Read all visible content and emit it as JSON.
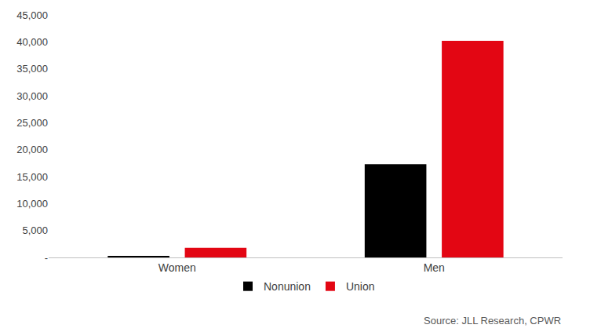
{
  "chart_data": {
    "type": "bar",
    "categories": [
      "Women",
      "Men"
    ],
    "series": [
      {
        "name": "Nonunion",
        "color": "#000000",
        "values": [
          300,
          17300
        ]
      },
      {
        "name": "Union",
        "color": "#e30613",
        "values": [
          1800,
          40200
        ]
      }
    ],
    "ylim": [
      0,
      45000
    ],
    "yticks": [
      {
        "value": 0,
        "label": "-"
      },
      {
        "value": 5000,
        "label": "5,000"
      },
      {
        "value": 10000,
        "label": "10,000"
      },
      {
        "value": 15000,
        "label": "15,000"
      },
      {
        "value": 20000,
        "label": "20,000"
      },
      {
        "value": 25000,
        "label": "25,000"
      },
      {
        "value": 30000,
        "label": "30,000"
      },
      {
        "value": 35000,
        "label": "35,000"
      },
      {
        "value": 40000,
        "label": "40,000"
      },
      {
        "value": 45000,
        "label": "45,000"
      }
    ],
    "grid": false,
    "legend": "bottom",
    "annotations": [
      "Source: JLL Research, CPWR"
    ]
  }
}
